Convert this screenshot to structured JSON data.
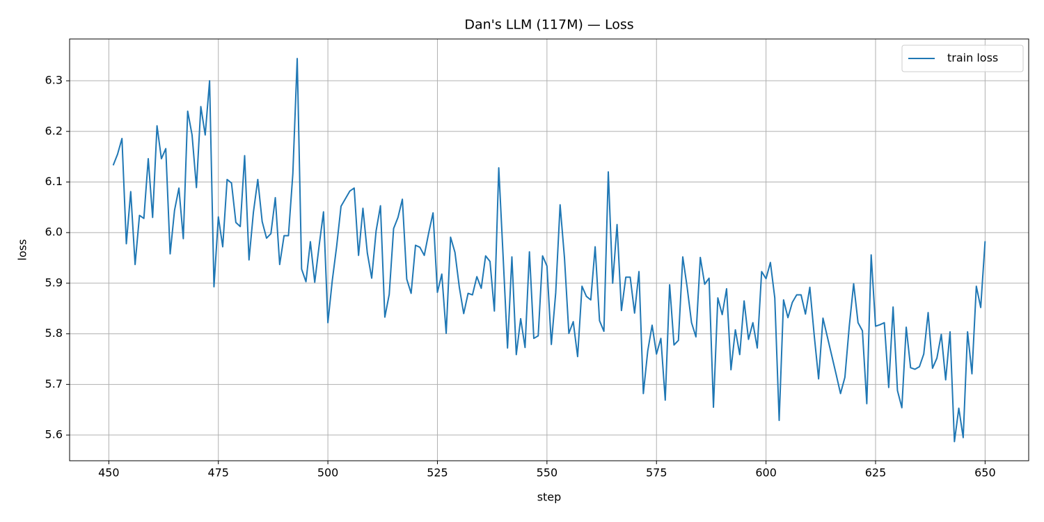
{
  "chart_data": {
    "type": "line",
    "title": "Dan's LLM (117M) — Loss",
    "xlabel": "step",
    "ylabel": "loss",
    "x": [
      451,
      452,
      453,
      454,
      455,
      456,
      457,
      458,
      459,
      460,
      461,
      462,
      463,
      464,
      465,
      466,
      467,
      468,
      469,
      470,
      471,
      472,
      473,
      474,
      475,
      476,
      477,
      478,
      479,
      480,
      481,
      482,
      483,
      484,
      485,
      486,
      487,
      488,
      489,
      490,
      491,
      492,
      493,
      494,
      495,
      496,
      497,
      498,
      499,
      500,
      501,
      502,
      503,
      504,
      505,
      506,
      507,
      508,
      509,
      510,
      511,
      512,
      513,
      514,
      515,
      516,
      517,
      518,
      519,
      520,
      521,
      522,
      523,
      524,
      525,
      526,
      527,
      528,
      529,
      530,
      531,
      532,
      533,
      534,
      535,
      536,
      537,
      538,
      539,
      540,
      541,
      542,
      543,
      544,
      545,
      546,
      547,
      548,
      549,
      550,
      551,
      552,
      553,
      554,
      555,
      556,
      557,
      558,
      559,
      560,
      561,
      562,
      563,
      564,
      565,
      566,
      567,
      568,
      569,
      570,
      571,
      572,
      573,
      574,
      575,
      576,
      577,
      578,
      579,
      580,
      581,
      582,
      583,
      584,
      585,
      586,
      587,
      588,
      589,
      590,
      591,
      592,
      593,
      594,
      595,
      596,
      597,
      598,
      599,
      600,
      601,
      602,
      603,
      604,
      605,
      606,
      607,
      608,
      609,
      610,
      611,
      612,
      613,
      614,
      615,
      616,
      617,
      618,
      619,
      620,
      621,
      622,
      623,
      624,
      625,
      626,
      627,
      628,
      629,
      630,
      631,
      632,
      633,
      634,
      635,
      636,
      637,
      638,
      639,
      640,
      641,
      642,
      643,
      644,
      645,
      646,
      647,
      648,
      649,
      650
    ],
    "series": [
      {
        "name": "train loss",
        "color": "#1f77b4",
        "values": [
          6.133,
          6.155,
          6.186,
          5.978,
          6.081,
          5.937,
          6.034,
          6.028,
          6.146,
          6.03,
          6.211,
          6.146,
          6.166,
          5.958,
          6.044,
          6.088,
          5.988,
          6.24,
          6.193,
          6.089,
          6.249,
          6.193,
          6.3,
          5.893,
          6.031,
          5.972,
          6.105,
          6.098,
          6.02,
          6.012,
          6.152,
          5.946,
          6.04,
          6.105,
          6.022,
          5.989,
          5.998,
          6.069,
          5.937,
          5.994,
          5.994,
          6.116,
          6.344,
          5.928,
          5.903,
          5.982,
          5.902,
          5.974,
          6.041,
          5.822,
          5.905,
          5.973,
          6.052,
          6.067,
          6.082,
          6.088,
          5.955,
          6.048,
          5.96,
          5.91,
          6.003,
          6.053,
          5.833,
          5.878,
          6.008,
          6.03,
          6.066,
          5.908,
          5.88,
          5.975,
          5.971,
          5.955,
          5.999,
          6.039,
          5.882,
          5.918,
          5.801,
          5.991,
          5.961,
          5.892,
          5.84,
          5.88,
          5.877,
          5.913,
          5.89,
          5.954,
          5.943,
          5.845,
          6.128,
          5.952,
          5.772,
          5.952,
          5.759,
          5.83,
          5.773,
          5.962,
          5.791,
          5.796,
          5.954,
          5.934,
          5.779,
          5.881,
          6.055,
          5.95,
          5.801,
          5.824,
          5.755,
          5.894,
          5.874,
          5.867,
          5.972,
          5.826,
          5.805,
          6.12,
          5.9,
          6.016,
          5.846,
          5.912,
          5.912,
          5.841,
          5.923,
          5.682,
          5.766,
          5.817,
          5.76,
          5.791,
          5.669,
          5.897,
          5.778,
          5.787,
          5.952,
          5.892,
          5.822,
          5.794,
          5.951,
          5.898,
          5.91,
          5.655,
          5.871,
          5.838,
          5.889,
          5.729,
          5.808,
          5.759,
          5.865,
          5.789,
          5.822,
          5.772,
          5.923,
          5.909,
          5.941,
          5.871,
          5.629,
          5.867,
          5.832,
          5.862,
          5.877,
          5.877,
          5.839,
          5.892,
          5.797,
          5.711,
          5.831,
          5.794,
          5.757,
          5.72,
          5.682,
          5.714,
          5.815,
          5.899,
          5.822,
          5.806,
          5.662,
          5.956,
          5.815,
          5.818,
          5.822,
          5.694,
          5.853,
          5.688,
          5.654,
          5.813,
          5.733,
          5.73,
          5.735,
          5.76,
          5.842,
          5.732,
          5.752,
          5.799,
          5.709,
          5.804,
          5.587,
          5.653,
          5.595,
          5.804,
          5.721,
          5.894,
          5.852,
          5.983
        ]
      }
    ],
    "xlim": [
      441.05,
      659.95
    ],
    "xticks": [
      450,
      475,
      500,
      525,
      550,
      575,
      600,
      625,
      650
    ],
    "ylim": [
      5.5492,
      6.3826
    ],
    "yticks": [
      5.6,
      5.7,
      5.8,
      5.9,
      {
        "value": 6,
        "label": "6.0"
      },
      6.1,
      6.2,
      6.3
    ],
    "grid": true,
    "legend": "upper right"
  }
}
